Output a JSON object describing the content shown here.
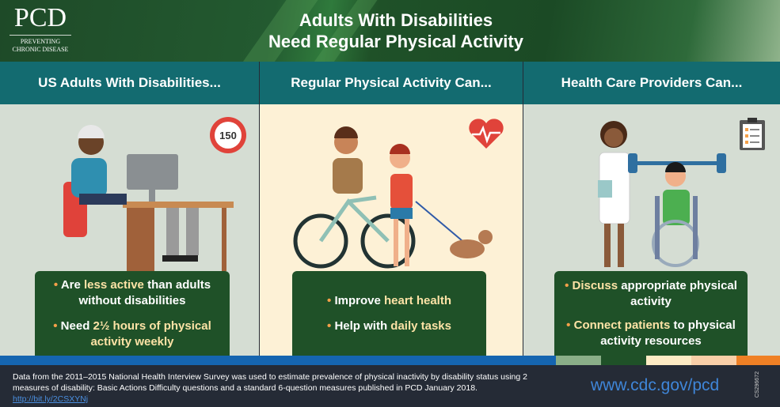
{
  "header": {
    "logo": {
      "name": "PCD",
      "line1": "PREVENTING",
      "line2": "CHRONIC DISEASE"
    },
    "title_line1": "Adults With Disabilities",
    "title_line2": "Need Regular Physical Activity"
  },
  "columns": [
    {
      "heading": "US Adults With Disabilities...",
      "badge": "150",
      "bullets": [
        {
          "pre": "Are ",
          "strong": "less active",
          "post": " than adults without disabilities"
        },
        {
          "pre": "Need ",
          "strong": "2½ hours of physical activity weekly",
          "post": ""
        }
      ]
    },
    {
      "heading": "Regular Physical Activity Can...",
      "bullets": [
        {
          "pre": "Improve ",
          "strong": "heart health",
          "post": ""
        },
        {
          "pre": "Help with ",
          "strong": "daily tasks",
          "post": ""
        }
      ]
    },
    {
      "heading": "Health Care Providers Can...",
      "bullets": [
        {
          "pre": "",
          "strong": "Discuss",
          "post": " appropriate physical activity"
        },
        {
          "pre": "",
          "strong": "Connect patients",
          "post": " to physical activity resources"
        }
      ]
    }
  ],
  "colors": {
    "header_green": "#1f5128",
    "teal": "#136b70",
    "box_green": "#1f5128",
    "bullet": "#f5a04a",
    "highlight": "#fde3a6",
    "blue": "#1565b0"
  },
  "footer": {
    "text": "Data from the 2011–2015 National Health Interview Survey was used to estimate prevalence of physical inactivity by disability status using 2 measures of disability: Basic Actions Difficulty questions and a standard 6-question measures published in PCD January 2018.",
    "link": "http://bit.ly/2CSXYNj",
    "url": "www.cdc.gov/pcd",
    "code": "CS296672"
  }
}
